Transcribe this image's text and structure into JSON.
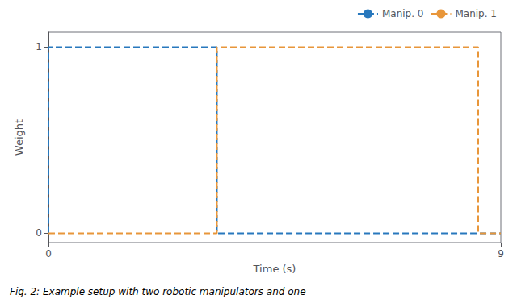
{
  "chart_data": {
    "type": "line",
    "xlabel": "Time (s)",
    "ylabel": "Weight",
    "caption": "Fig. 2: Example setup with two robotic manipulators and one",
    "xlim": [
      0,
      9
    ],
    "ylim": [
      -0.05,
      1.08
    ],
    "xticks": [
      0,
      9
    ],
    "yticks": [
      0,
      1
    ],
    "grid": false,
    "legend": "upper right",
    "line_style": "dashed",
    "series": [
      {
        "name": "Manip. 0",
        "color": "#2878bd",
        "x": [
          0,
          0,
          3.35,
          3.35,
          9
        ],
        "values": [
          0,
          1,
          1,
          0,
          0
        ]
      },
      {
        "name": "Manip. 1",
        "color": "#e8963a",
        "x": [
          0,
          3.35,
          3.35,
          8.55,
          8.55,
          9
        ],
        "values": [
          0,
          0,
          1,
          1,
          0,
          0
        ]
      }
    ]
  }
}
